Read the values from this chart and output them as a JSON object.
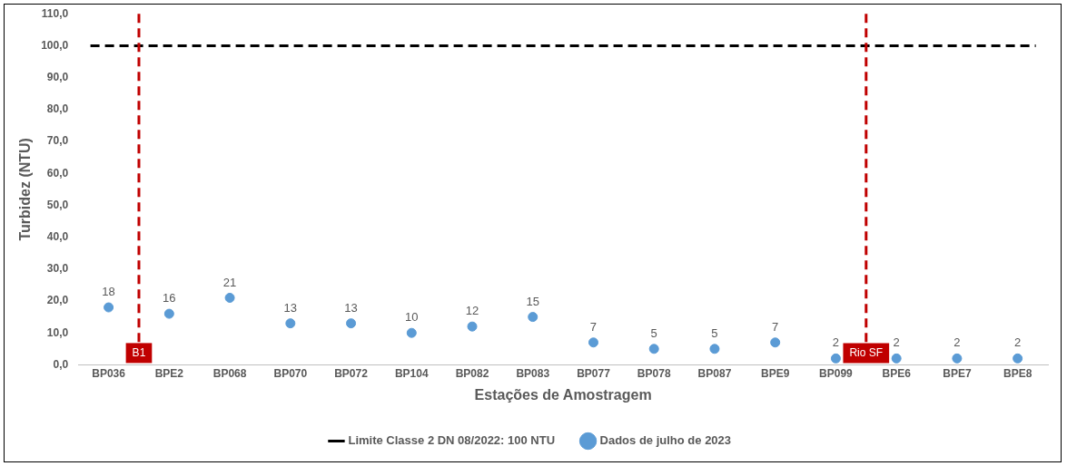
{
  "chart_data": {
    "type": "scatter",
    "xlabel": "Estações de Amostragem",
    "ylabel": "Turbidez (NTU)",
    "categories": [
      "BP036",
      "BPE2",
      "BP068",
      "BP070",
      "BP072",
      "BP104",
      "BP082",
      "BP083",
      "BP077",
      "BP078",
      "BP087",
      "BPE9",
      "BP099",
      "BPE6",
      "BPE7",
      "BPE8"
    ],
    "series": [
      {
        "name": "Dados de julho de 2023",
        "color": "#5b9bd5",
        "values": [
          18,
          16,
          21,
          13,
          13,
          10,
          12,
          15,
          7,
          5,
          5,
          7,
          2,
          2,
          2,
          2
        ]
      }
    ],
    "data_labels": true,
    "marker": "circle",
    "ylim": [
      0,
      110
    ],
    "yticks": [
      {
        "value": 0,
        "label": "0,0"
      },
      {
        "value": 10,
        "label": "10,0"
      },
      {
        "value": 20,
        "label": "20,0"
      },
      {
        "value": 30,
        "label": "30,0"
      },
      {
        "value": 40,
        "label": "40,0"
      },
      {
        "value": 50,
        "label": "50,0"
      },
      {
        "value": 60,
        "label": "60,0"
      },
      {
        "value": 70,
        "label": "70,0"
      },
      {
        "value": 80,
        "label": "80,0"
      },
      {
        "value": 90,
        "label": "90,0"
      },
      {
        "value": 100,
        "label": "100,0"
      },
      {
        "value": 110,
        "label": "110,0"
      }
    ],
    "ref_lines": [
      {
        "axis": "y",
        "value": 100,
        "label": "Limite Classe 2 DN 08/2022: 100 NTU",
        "color": "#000000",
        "line_style": "dashed"
      }
    ],
    "annotations": [
      "B1",
      "Rio SF"
    ],
    "grid": false,
    "legend": "bottom"
  }
}
